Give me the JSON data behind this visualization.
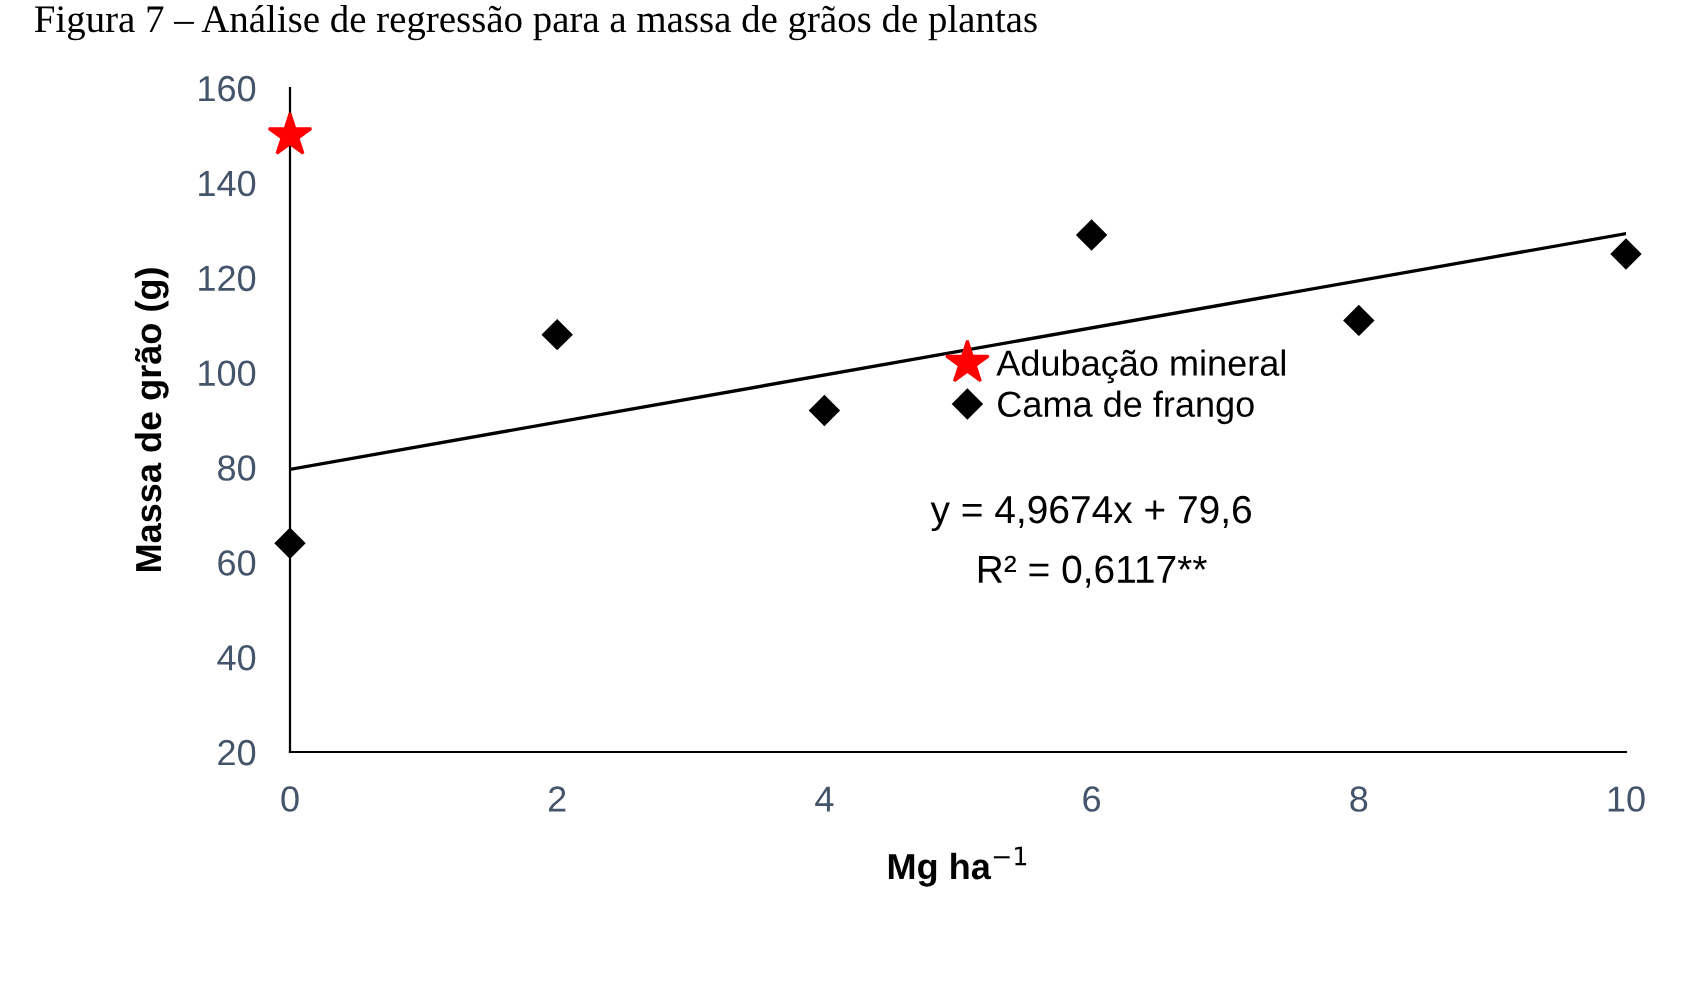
{
  "chart_data": {
    "type": "scatter",
    "title": "Figura 7 – Análise de regressão para a massa de grãos de plantas",
    "xlabel": "Mg ha$^{−1}$",
    "ylabel": "Massa de grão (g)",
    "series": [
      {
        "name": "Adubação mineral",
        "color": "#ff0000",
        "marker": "star",
        "x": [
          0
        ],
        "values": [
          150
        ]
      },
      {
        "name": "Cama de frango",
        "color": "#000000",
        "marker": "diamond",
        "x": [
          0,
          2,
          4,
          6,
          8,
          10
        ],
        "values": [
          64,
          108,
          92,
          129,
          111,
          125
        ]
      },
      {
        "type": "line",
        "color": "#000000",
        "marker": "none",
        "x": [
          0,
          10
        ],
        "values": [
          79.6,
          129.3
        ]
      }
    ],
    "annotations": [
      "y = 4,9674x + 79,6",
      "R² = 0,6117**"
    ],
    "xlim": [
      0,
      10
    ],
    "xticks": [
      0,
      2,
      4,
      6,
      8,
      10
    ],
    "ylim": [
      20,
      160
    ],
    "yticks": [
      20,
      40,
      60,
      80,
      100,
      120,
      140,
      160
    ],
    "grid": false,
    "legend": "center"
  }
}
